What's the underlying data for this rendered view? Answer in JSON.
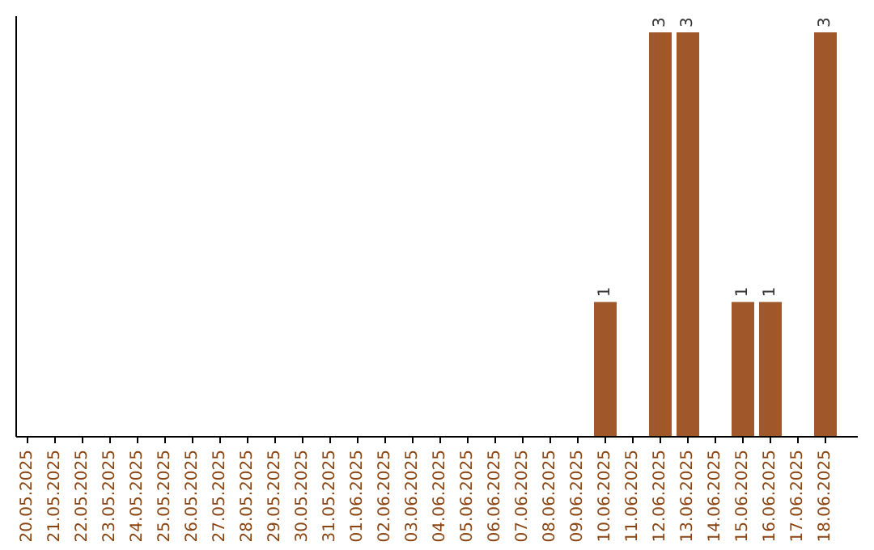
{
  "chart_data": {
    "type": "bar",
    "categories": [
      "20.05.2025",
      "21.05.2025",
      "22.05.2025",
      "23.05.2025",
      "24.05.2025",
      "25.05.2025",
      "26.05.2025",
      "27.05.2025",
      "28.05.2025",
      "29.05.2025",
      "30.05.2025",
      "31.05.2025",
      "01.06.2025",
      "02.06.2025",
      "03.06.2025",
      "04.06.2025",
      "05.06.2025",
      "06.06.2025",
      "07.06.2025",
      "08.06.2025",
      "09.06.2025",
      "10.06.2025",
      "11.06.2025",
      "12.06.2025",
      "13.06.2025",
      "14.06.2025",
      "15.06.2025",
      "16.06.2025",
      "17.06.2025",
      "18.06.2025"
    ],
    "values": [
      null,
      null,
      null,
      null,
      null,
      null,
      null,
      null,
      null,
      null,
      null,
      null,
      null,
      null,
      null,
      null,
      null,
      null,
      null,
      null,
      null,
      1,
      null,
      3,
      3,
      null,
      1,
      1,
      null,
      3
    ],
    "value_labels": [
      null,
      null,
      null,
      null,
      null,
      null,
      null,
      null,
      null,
      null,
      null,
      null,
      null,
      null,
      null,
      null,
      null,
      null,
      null,
      null,
      null,
      "1",
      null,
      "3",
      "3",
      null,
      "1",
      "1",
      null,
      "3"
    ],
    "color": "#a0582a"
  }
}
